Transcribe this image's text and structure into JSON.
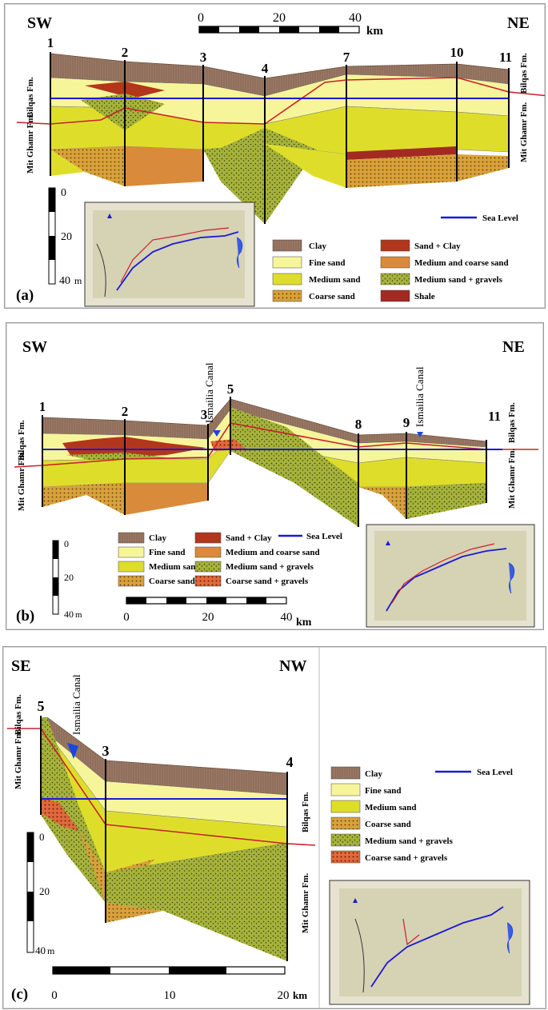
{
  "colors": {
    "clay": "#9a7a66",
    "fine_sand": "#f7f59a",
    "medium_sand": "#dede2a",
    "coarse_sand": "#d9a13a",
    "sand_clay": "#b2361c",
    "med_coarse_sand": "#d98a3a",
    "med_sand_gravels": "#a6b23a",
    "shale": "#a32a22",
    "coarse_sand_gravels": "#e06a3a",
    "sea_level": "#1a1ad6",
    "formation_boundary": "#c8202a",
    "canal": "#1a46e0"
  },
  "panel_a": {
    "label": "(a)",
    "dir_left": "SW",
    "dir_right": "NE",
    "scale_ticks": [
      "0",
      "20",
      "40"
    ],
    "scale_unit": "km",
    "depth_ticks": [
      "0",
      "20",
      "40"
    ],
    "depth_unit": "m",
    "wells": [
      "1",
      "2",
      "3",
      "4",
      "7",
      "10",
      "11"
    ],
    "formation_upper": "Bilqas Fm.",
    "formation_lower": "Mit Ghamr Fm.",
    "sea_level_label": "Sea Level",
    "legend": [
      "Clay",
      "Fine sand",
      "Medium sand",
      "Coarse sand",
      "Sand + Clay",
      "Medium and coarse sand",
      "Medium sand + gravels",
      "Shale"
    ]
  },
  "panel_b": {
    "label": "(b)",
    "dir_left": "SW",
    "dir_right": "NE",
    "scale_ticks": [
      "0",
      "20",
      "40"
    ],
    "scale_unit": "km",
    "depth_ticks": [
      "0",
      "20",
      "40"
    ],
    "depth_unit": "m",
    "wells": [
      "1",
      "2",
      "3",
      "5",
      "8",
      "9",
      "11"
    ],
    "canal_label": "Ismailia Canal",
    "formation_upper": "Bilqas Fm.",
    "formation_lower": "Mit Ghamr Fm.",
    "sea_level_label": "Sea Level",
    "legend": [
      "Clay",
      "Fine sand",
      "Medium sand",
      "Coarse sand",
      "Sand + Clay",
      "Medium and coarse sand",
      "Medium sand + gravels",
      "Coarse sand + gravels"
    ]
  },
  "panel_c": {
    "label": "(c)",
    "dir_left": "SE",
    "dir_right": "NW",
    "scale_ticks": [
      "0",
      "10",
      "20"
    ],
    "scale_unit": "km",
    "depth_ticks": [
      "0",
      "20",
      "40"
    ],
    "depth_unit": "m",
    "wells": [
      "5",
      "3",
      "4"
    ],
    "canal_label": "Ismailia Canal",
    "formation_upper": "Bilqas Fm.",
    "formation_lower": "Mit Ghamr Fm.",
    "sea_level_label": "Sea Level",
    "legend": [
      "Clay",
      "Fine sand",
      "Medium sand",
      "Coarse sand",
      "Medium sand + gravels",
      "Coarse sand + gravels"
    ]
  }
}
